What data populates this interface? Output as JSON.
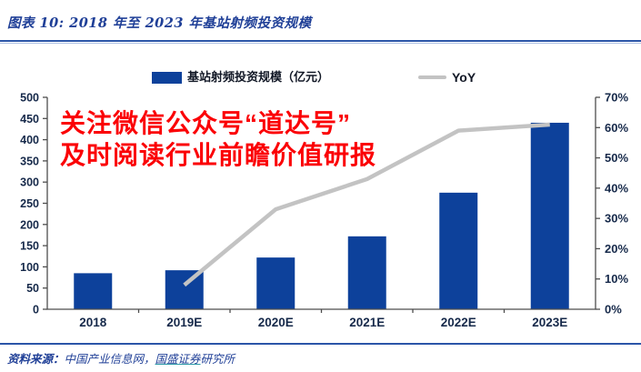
{
  "header": {
    "title": "图表 10: 2018 年至 2023 年基站射频投资规模"
  },
  "legend": {
    "bar_label": "基站射频投资规模（亿元）",
    "line_label": "YoY"
  },
  "watermark": {
    "line1": "关注微信公众号“道达号”",
    "line2": "及时阅读行业前瞻价值研报"
  },
  "footer": {
    "prefix": "资料来源：",
    "source1": "中国产业信息网，",
    "source_link": "国盛证券",
    "source_rest": "研究所"
  },
  "colors": {
    "bar": "#0D419B",
    "line": "#C3C3C3",
    "axis": "#4D4D4D",
    "tick_text": "#16294A",
    "title_text": "#1F3F97",
    "watermark_red": "#FB0005",
    "separator_blue": "#2B55A8"
  },
  "chart_data": {
    "type": "bar",
    "subtype": "bar+line combo",
    "title": "2018 年至 2023 年基站射频投资规模",
    "categories": [
      "2018",
      "2019E",
      "2020E",
      "2021E",
      "2022E",
      "2023E"
    ],
    "series": [
      {
        "name": "基站射频投资规模（亿元）",
        "type": "bar",
        "axis": "left",
        "values": [
          85,
          92,
          122,
          172,
          275,
          440
        ]
      },
      {
        "name": "YoY",
        "type": "line",
        "axis": "right",
        "unit": "%",
        "values": [
          null,
          8,
          33,
          43,
          59,
          61
        ]
      }
    ],
    "left_axis": {
      "min": 0,
      "max": 500,
      "step": 50,
      "ticks": [
        "0",
        "50",
        "100",
        "150",
        "200",
        "250",
        "300",
        "350",
        "400",
        "450",
        "500"
      ]
    },
    "right_axis": {
      "min": 0,
      "max": 70,
      "step": 10,
      "ticks": [
        "0%",
        "10%",
        "20%",
        "30%",
        "40%",
        "50%",
        "60%",
        "70%"
      ]
    },
    "grid": false,
    "legend_position": "top"
  }
}
